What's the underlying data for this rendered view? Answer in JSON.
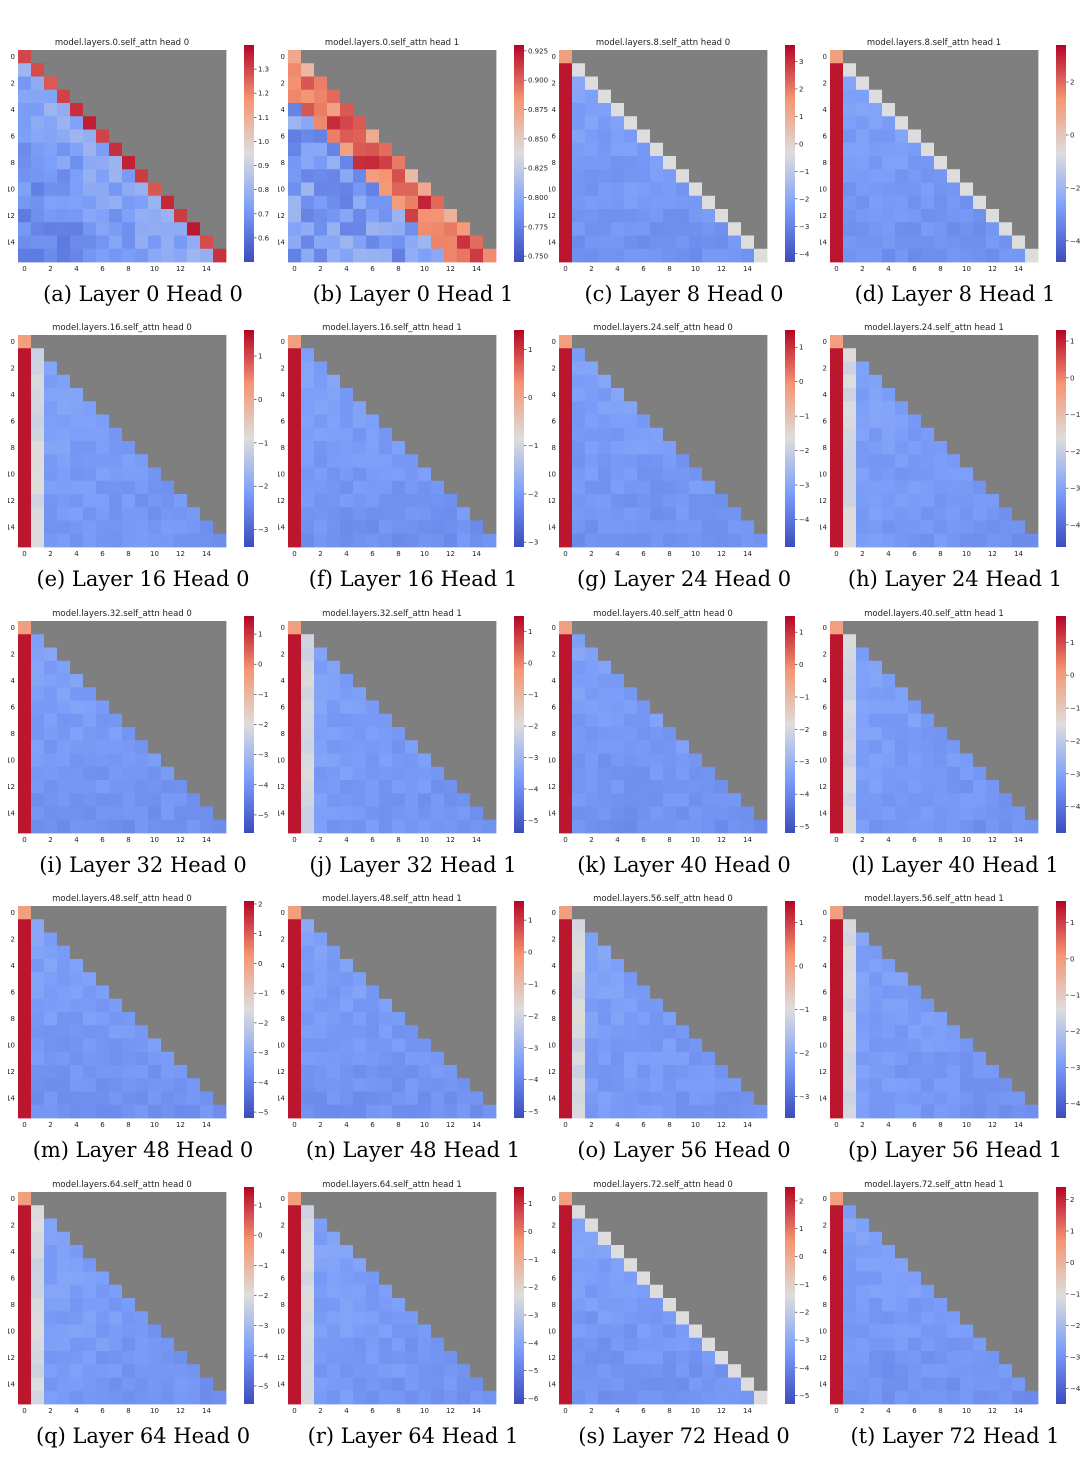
{
  "figure": {
    "colormap": "coolwarm",
    "masked_color": "#7f7f7f",
    "panels": [
      {
        "title": "model.layers.0.self_attn head 0",
        "caption": "(a) Layer 0 Head 0",
        "chart_data": {
          "type": "heatmap",
          "pattern": "diagonal",
          "size": 16,
          "colorbar_range": [
            0.5,
            1.4
          ],
          "colorbar_ticks": [
            "0.6",
            "0.7",
            "0.8",
            "0.9",
            "1.0",
            "1.1",
            "1.2",
            "1.3"
          ],
          "x_ticks": [
            "0",
            "2",
            "4",
            "6",
            "8",
            "10",
            "12",
            "14"
          ],
          "y_ticks": [
            "0",
            "2",
            "4",
            "6",
            "8",
            "10",
            "12",
            "14"
          ]
        }
      },
      {
        "title": "model.layers.0.self_attn head 1",
        "caption": "(b) Layer 0 Head 1",
        "chart_data": {
          "type": "heatmap",
          "pattern": "band",
          "size": 16,
          "colorbar_range": [
            0.745,
            0.93
          ],
          "colorbar_ticks": [
            "0.750",
            "0.775",
            "0.800",
            "0.825",
            "0.850",
            "0.875",
            "0.900",
            "0.925"
          ],
          "x_ticks": [
            "0",
            "2",
            "4",
            "6",
            "8",
            "10",
            "12",
            "14"
          ],
          "y_ticks": [
            "0",
            "2",
            "4",
            "6",
            "8",
            "10",
            "12",
            "14"
          ]
        }
      },
      {
        "title": "model.layers.8.self_attn head 0",
        "caption": "(c) Layer 8 Head 0",
        "chart_data": {
          "type": "heatmap",
          "pattern": "sink-diag",
          "size": 16,
          "colorbar_range": [
            -4.3,
            3.6
          ],
          "colorbar_ticks": [
            "−4",
            "−3",
            "−2",
            "−1",
            "0",
            "1",
            "2",
            "3"
          ],
          "x_ticks": [
            "0",
            "2",
            "4",
            "6",
            "8",
            "10",
            "12",
            "14"
          ],
          "y_ticks": [
            "0",
            "2",
            "4",
            "6",
            "8",
            "10",
            "12",
            "14"
          ]
        }
      },
      {
        "title": "model.layers.8.self_attn head 1",
        "caption": "(d) Layer 8 Head 1",
        "chart_data": {
          "type": "heatmap",
          "pattern": "sink-diag",
          "size": 16,
          "colorbar_range": [
            -4.8,
            3.4
          ],
          "colorbar_ticks": [
            "−4",
            "−2",
            "0",
            "2"
          ],
          "x_ticks": [
            "0",
            "2",
            "4",
            "6",
            "8",
            "10",
            "12",
            "14"
          ],
          "y_ticks": [
            "0",
            "2",
            "4",
            "6",
            "8",
            "10",
            "12",
            "14"
          ]
        }
      },
      {
        "title": "model.layers.16.self_attn head 0",
        "caption": "(e) Layer 16 Head 0",
        "chart_data": {
          "type": "heatmap",
          "pattern": "sink-col1",
          "size": 16,
          "colorbar_range": [
            -3.4,
            1.6
          ],
          "colorbar_ticks": [
            "−3",
            "−2",
            "−1",
            "0",
            "1"
          ],
          "x_ticks": [
            "0",
            "2",
            "4",
            "6",
            "8",
            "10",
            "12",
            "14"
          ],
          "y_ticks": [
            "0",
            "2",
            "4",
            "6",
            "8",
            "10",
            "12",
            "14"
          ]
        }
      },
      {
        "title": "model.layers.16.self_attn head 1",
        "caption": "(f) Layer 16 Head 1",
        "chart_data": {
          "type": "heatmap",
          "pattern": "sink",
          "size": 16,
          "colorbar_range": [
            -3.1,
            1.4
          ],
          "colorbar_ticks": [
            "−3",
            "−2",
            "−1",
            "0",
            "1"
          ],
          "x_ticks": [
            "0",
            "2",
            "4",
            "6",
            "8",
            "10",
            "12",
            "14"
          ],
          "y_ticks": [
            "0",
            "2",
            "4",
            "6",
            "8",
            "10",
            "12",
            "14"
          ]
        }
      },
      {
        "title": "model.layers.24.self_attn head 0",
        "caption": "(g) Layer 24 Head 0",
        "chart_data": {
          "type": "heatmap",
          "pattern": "sink",
          "size": 16,
          "colorbar_range": [
            -4.8,
            1.5
          ],
          "colorbar_ticks": [
            "−4",
            "−3",
            "−2",
            "−1",
            "0",
            "1"
          ],
          "x_ticks": [
            "0",
            "2",
            "4",
            "6",
            "8",
            "10",
            "12",
            "14"
          ],
          "y_ticks": [
            "0",
            "2",
            "4",
            "6",
            "8",
            "10",
            "12",
            "14"
          ]
        }
      },
      {
        "title": "model.layers.24.self_attn head 1",
        "caption": "(h) Layer 24 Head 1",
        "chart_data": {
          "type": "heatmap",
          "pattern": "sink-col1",
          "size": 16,
          "colorbar_range": [
            -4.6,
            1.3
          ],
          "colorbar_ticks": [
            "−4",
            "−3",
            "−2",
            "−1",
            "0",
            "1"
          ],
          "x_ticks": [
            "0",
            "2",
            "4",
            "6",
            "8",
            "10",
            "12",
            "14"
          ],
          "y_ticks": [
            "0",
            "2",
            "4",
            "6",
            "8",
            "10",
            "12",
            "14"
          ]
        }
      },
      {
        "title": "model.layers.32.self_attn head 0",
        "caption": "(i) Layer 32 Head 0",
        "chart_data": {
          "type": "heatmap",
          "pattern": "sink",
          "size": 16,
          "colorbar_range": [
            -5.6,
            1.6
          ],
          "colorbar_ticks": [
            "−5",
            "−4",
            "−3",
            "−2",
            "−1",
            "0",
            "1"
          ],
          "x_ticks": [
            "0",
            "2",
            "4",
            "6",
            "8",
            "10",
            "12",
            "14"
          ],
          "y_ticks": [
            "0",
            "2",
            "4",
            "6",
            "8",
            "10",
            "12",
            "14"
          ]
        }
      },
      {
        "title": "model.layers.32.self_attn head 1",
        "caption": "(j) Layer 32 Head 1",
        "chart_data": {
          "type": "heatmap",
          "pattern": "sink-col1",
          "size": 16,
          "colorbar_range": [
            -5.4,
            1.5
          ],
          "colorbar_ticks": [
            "−5",
            "−4",
            "−3",
            "−2",
            "−1",
            "0",
            "1"
          ],
          "x_ticks": [
            "0",
            "2",
            "4",
            "6",
            "8",
            "10",
            "12",
            "14"
          ],
          "y_ticks": [
            "0",
            "2",
            "4",
            "6",
            "8",
            "10",
            "12",
            "14"
          ]
        }
      },
      {
        "title": "model.layers.40.self_attn head 0",
        "caption": "(k) Layer 40 Head 0",
        "chart_data": {
          "type": "heatmap",
          "pattern": "sink",
          "size": 16,
          "colorbar_range": [
            -5.2,
            1.5
          ],
          "colorbar_ticks": [
            "−5",
            "−4",
            "−3",
            "−2",
            "−1",
            "0",
            "1"
          ],
          "x_ticks": [
            "0",
            "2",
            "4",
            "6",
            "8",
            "10",
            "12",
            "14"
          ],
          "y_ticks": [
            "0",
            "2",
            "4",
            "6",
            "8",
            "10",
            "12",
            "14"
          ]
        }
      },
      {
        "title": "model.layers.40.self_attn head 1",
        "caption": "(l) Layer 40 Head 1",
        "chart_data": {
          "type": "heatmap",
          "pattern": "sink-col1",
          "size": 16,
          "colorbar_range": [
            -4.8,
            1.8
          ],
          "colorbar_ticks": [
            "−4",
            "−3",
            "−2",
            "−1",
            "0",
            "1"
          ],
          "x_ticks": [
            "0",
            "2",
            "4",
            "6",
            "8",
            "10",
            "12",
            "14"
          ],
          "y_ticks": [
            "0",
            "2",
            "4",
            "6",
            "8",
            "10",
            "12",
            "14"
          ]
        }
      },
      {
        "title": "model.layers.48.self_attn head 0",
        "caption": "(m) Layer 48 Head 0",
        "chart_data": {
          "type": "heatmap",
          "pattern": "sink",
          "size": 16,
          "colorbar_range": [
            -5.2,
            2.1
          ],
          "colorbar_ticks": [
            "−5",
            "−4",
            "−3",
            "−2",
            "−1",
            "0",
            "1",
            "2"
          ],
          "x_ticks": [
            "0",
            "2",
            "4",
            "6",
            "8",
            "10",
            "12",
            "14"
          ],
          "y_ticks": [
            "0",
            "2",
            "4",
            "6",
            "8",
            "10",
            "12",
            "14"
          ]
        }
      },
      {
        "title": "model.layers.48.self_attn head 1",
        "caption": "(n) Layer 48 Head 1",
        "chart_data": {
          "type": "heatmap",
          "pattern": "sink",
          "size": 16,
          "colorbar_range": [
            -5.2,
            1.6
          ],
          "colorbar_ticks": [
            "−5",
            "−4",
            "−3",
            "−2",
            "−1",
            "0",
            "1"
          ],
          "x_ticks": [
            "0",
            "2",
            "4",
            "6",
            "8",
            "10",
            "12",
            "14"
          ],
          "y_ticks": [
            "0",
            "2",
            "4",
            "6",
            "8",
            "10",
            "12",
            "14"
          ]
        }
      },
      {
        "title": "model.layers.56.self_attn head 0",
        "caption": "(o) Layer 56 Head 0",
        "chart_data": {
          "type": "heatmap",
          "pattern": "sink-col1",
          "size": 16,
          "colorbar_range": [
            -3.5,
            1.5
          ],
          "colorbar_ticks": [
            "−3",
            "−2",
            "−1",
            "0",
            "1"
          ],
          "x_ticks": [
            "0",
            "2",
            "4",
            "6",
            "8",
            "10",
            "12",
            "14"
          ],
          "y_ticks": [
            "0",
            "2",
            "4",
            "6",
            "8",
            "10",
            "12",
            "14"
          ]
        }
      },
      {
        "title": "model.layers.56.self_attn head 1",
        "caption": "(p) Layer 56 Head 1",
        "chart_data": {
          "type": "heatmap",
          "pattern": "sink-col1",
          "size": 16,
          "colorbar_range": [
            -4.4,
            1.6
          ],
          "colorbar_ticks": [
            "−4",
            "−3",
            "−2",
            "−1",
            "0",
            "1"
          ],
          "x_ticks": [
            "0",
            "2",
            "4",
            "6",
            "8",
            "10",
            "12",
            "14"
          ],
          "y_ticks": [
            "0",
            "2",
            "4",
            "6",
            "8",
            "10",
            "12",
            "14"
          ]
        }
      },
      {
        "title": "model.layers.64.self_attn head 0",
        "caption": "(q) Layer 64 Head 0",
        "chart_data": {
          "type": "heatmap",
          "pattern": "sink-col1",
          "size": 16,
          "colorbar_range": [
            -5.6,
            1.6
          ],
          "colorbar_ticks": [
            "−5",
            "−4",
            "−3",
            "−2",
            "−1",
            "0",
            "1"
          ],
          "x_ticks": [
            "0",
            "2",
            "4",
            "6",
            "8",
            "10",
            "12",
            "14"
          ],
          "y_ticks": [
            "0",
            "2",
            "4",
            "6",
            "8",
            "10",
            "12",
            "14"
          ]
        }
      },
      {
        "title": "model.layers.64.self_attn head 1",
        "caption": "(r) Layer 64 Head 1",
        "chart_data": {
          "type": "heatmap",
          "pattern": "sink-col1",
          "size": 16,
          "colorbar_range": [
            -6.2,
            1.6
          ],
          "colorbar_ticks": [
            "−6",
            "−5",
            "−4",
            "−3",
            "−2",
            "−1",
            "0",
            "1"
          ],
          "x_ticks": [
            "0",
            "2",
            "4",
            "6",
            "8",
            "10",
            "12",
            "14"
          ],
          "y_ticks": [
            "0",
            "2",
            "4",
            "6",
            "8",
            "10",
            "12",
            "14"
          ]
        }
      },
      {
        "title": "model.layers.72.self_attn head 0",
        "caption": "(s) Layer 72 Head 0",
        "chart_data": {
          "type": "heatmap",
          "pattern": "sink-diag",
          "size": 16,
          "colorbar_range": [
            -5.3,
            2.5
          ],
          "colorbar_ticks": [
            "−5",
            "−4",
            "−3",
            "−2",
            "−1",
            "0",
            "1",
            "2"
          ],
          "x_ticks": [
            "0",
            "2",
            "4",
            "6",
            "8",
            "10",
            "12",
            "14"
          ],
          "y_ticks": [
            "0",
            "2",
            "4",
            "6",
            "8",
            "10",
            "12",
            "14"
          ]
        }
      },
      {
        "title": "model.layers.72.self_attn head 1",
        "caption": "(t) Layer 72 Head 1",
        "chart_data": {
          "type": "heatmap",
          "pattern": "sink",
          "size": 16,
          "colorbar_range": [
            -4.5,
            2.4
          ],
          "colorbar_ticks": [
            "−4",
            "−3",
            "−2",
            "−1",
            "0",
            "1",
            "2"
          ],
          "x_ticks": [
            "0",
            "2",
            "4",
            "6",
            "8",
            "10",
            "12",
            "14"
          ],
          "y_ticks": [
            "0",
            "2",
            "4",
            "6",
            "8",
            "10",
            "12",
            "14"
          ]
        }
      }
    ]
  }
}
